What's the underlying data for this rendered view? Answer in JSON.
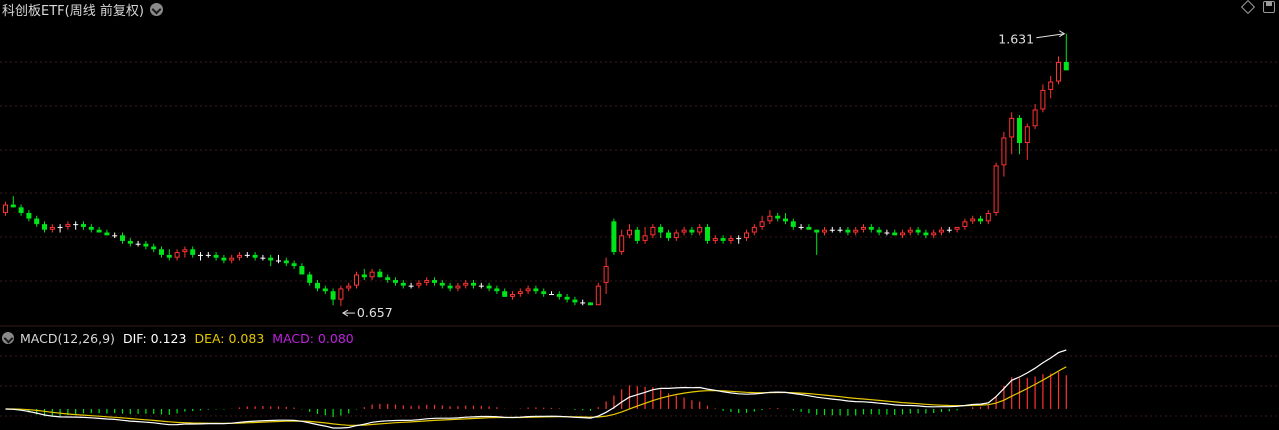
{
  "header": {
    "title": "科创板ETF(周线 前复权)"
  },
  "macd_panel": {
    "name": "MACD(12,26,9)",
    "dif_label": "DIF: 0.123",
    "dea_label": "DEA: 0.083",
    "macd_label": "MACD: 0.080"
  },
  "colors": {
    "up": "#ff3232",
    "down": "#00e51a",
    "flat": "#ffffff",
    "dif": "#ffffff",
    "dea": "#e6c800",
    "macd_label": "#c020e0",
    "grid": "#3a1a1a",
    "bg": "#000000"
  },
  "chart_data": {
    "type": "candlestick",
    "ylim": [
      0.6,
      1.68
    ],
    "annotations": {
      "high": "1.631",
      "low": "0.657"
    },
    "candles": [
      [
        0.99,
        1.03,
        0.98,
        1.02
      ],
      [
        1.02,
        1.05,
        1.01,
        1.01
      ],
      [
        1.01,
        1.02,
        0.98,
        0.99
      ],
      [
        0.99,
        1.0,
        0.96,
        0.97
      ],
      [
        0.97,
        0.98,
        0.94,
        0.95
      ],
      [
        0.95,
        0.96,
        0.92,
        0.93
      ],
      [
        0.93,
        0.95,
        0.92,
        0.94
      ],
      [
        0.94,
        0.95,
        0.92,
        0.94
      ],
      [
        0.94,
        0.96,
        0.93,
        0.95
      ],
      [
        0.95,
        0.96,
        0.93,
        0.95
      ],
      [
        0.95,
        0.96,
        0.93,
        0.94
      ],
      [
        0.94,
        0.95,
        0.92,
        0.93
      ],
      [
        0.93,
        0.94,
        0.92,
        0.92
      ],
      [
        0.92,
        0.93,
        0.91,
        0.91
      ],
      [
        0.91,
        0.92,
        0.9,
        0.91
      ],
      [
        0.91,
        0.92,
        0.88,
        0.89
      ],
      [
        0.89,
        0.9,
        0.87,
        0.88
      ],
      [
        0.88,
        0.89,
        0.87,
        0.88
      ],
      [
        0.88,
        0.89,
        0.86,
        0.87
      ],
      [
        0.87,
        0.88,
        0.85,
        0.86
      ],
      [
        0.86,
        0.87,
        0.83,
        0.84
      ],
      [
        0.84,
        0.86,
        0.82,
        0.83
      ],
      [
        0.83,
        0.86,
        0.82,
        0.85
      ],
      [
        0.85,
        0.87,
        0.83,
        0.86
      ],
      [
        0.86,
        0.87,
        0.83,
        0.84
      ],
      [
        0.84,
        0.85,
        0.82,
        0.84
      ],
      [
        0.84,
        0.85,
        0.83,
        0.84
      ],
      [
        0.84,
        0.85,
        0.82,
        0.83
      ],
      [
        0.83,
        0.84,
        0.81,
        0.82
      ],
      [
        0.82,
        0.84,
        0.81,
        0.83
      ],
      [
        0.83,
        0.85,
        0.82,
        0.84
      ],
      [
        0.84,
        0.85,
        0.83,
        0.84
      ],
      [
        0.84,
        0.85,
        0.82,
        0.83
      ],
      [
        0.83,
        0.84,
        0.82,
        0.83
      ],
      [
        0.83,
        0.84,
        0.8,
        0.82
      ],
      [
        0.82,
        0.84,
        0.81,
        0.82
      ],
      [
        0.82,
        0.83,
        0.8,
        0.81
      ],
      [
        0.81,
        0.82,
        0.79,
        0.8
      ],
      [
        0.8,
        0.81,
        0.77,
        0.77
      ],
      [
        0.77,
        0.78,
        0.73,
        0.74
      ],
      [
        0.74,
        0.75,
        0.71,
        0.72
      ],
      [
        0.72,
        0.73,
        0.7,
        0.71
      ],
      [
        0.71,
        0.72,
        0.66,
        0.68
      ],
      [
        0.68,
        0.73,
        0.657,
        0.72
      ],
      [
        0.72,
        0.74,
        0.71,
        0.73
      ],
      [
        0.73,
        0.78,
        0.72,
        0.77
      ],
      [
        0.77,
        0.79,
        0.75,
        0.76
      ],
      [
        0.76,
        0.79,
        0.75,
        0.78
      ],
      [
        0.78,
        0.79,
        0.76,
        0.76
      ],
      [
        0.76,
        0.77,
        0.74,
        0.75
      ],
      [
        0.75,
        0.76,
        0.73,
        0.74
      ],
      [
        0.74,
        0.75,
        0.72,
        0.73
      ],
      [
        0.73,
        0.74,
        0.72,
        0.73
      ],
      [
        0.73,
        0.75,
        0.72,
        0.74
      ],
      [
        0.74,
        0.76,
        0.73,
        0.75
      ],
      [
        0.75,
        0.76,
        0.73,
        0.74
      ],
      [
        0.74,
        0.75,
        0.72,
        0.73
      ],
      [
        0.73,
        0.74,
        0.71,
        0.72
      ],
      [
        0.72,
        0.74,
        0.71,
        0.73
      ],
      [
        0.73,
        0.75,
        0.72,
        0.74
      ],
      [
        0.74,
        0.75,
        0.72,
        0.73
      ],
      [
        0.73,
        0.74,
        0.72,
        0.73
      ],
      [
        0.73,
        0.74,
        0.71,
        0.72
      ],
      [
        0.72,
        0.73,
        0.7,
        0.71
      ],
      [
        0.71,
        0.72,
        0.69,
        0.69
      ],
      [
        0.69,
        0.71,
        0.68,
        0.7
      ],
      [
        0.7,
        0.72,
        0.69,
        0.71
      ],
      [
        0.71,
        0.73,
        0.7,
        0.72
      ],
      [
        0.72,
        0.73,
        0.7,
        0.71
      ],
      [
        0.71,
        0.72,
        0.69,
        0.7
      ],
      [
        0.7,
        0.71,
        0.7,
        0.7
      ],
      [
        0.7,
        0.71,
        0.68,
        0.69
      ],
      [
        0.69,
        0.7,
        0.67,
        0.68
      ],
      [
        0.68,
        0.69,
        0.66,
        0.67
      ],
      [
        0.67,
        0.68,
        0.66,
        0.67
      ],
      [
        0.67,
        0.67,
        0.66,
        0.66
      ],
      [
        0.66,
        0.74,
        0.66,
        0.73
      ],
      [
        0.74,
        0.83,
        0.7,
        0.8
      ],
      [
        0.96,
        0.97,
        0.84,
        0.85
      ],
      [
        0.85,
        0.93,
        0.84,
        0.91
      ],
      [
        0.91,
        0.95,
        0.9,
        0.93
      ],
      [
        0.93,
        0.94,
        0.88,
        0.89
      ],
      [
        0.89,
        0.94,
        0.88,
        0.91
      ],
      [
        0.91,
        0.95,
        0.9,
        0.94
      ],
      [
        0.94,
        0.95,
        0.9,
        0.92
      ],
      [
        0.92,
        0.93,
        0.89,
        0.9
      ],
      [
        0.9,
        0.93,
        0.89,
        0.92
      ],
      [
        0.92,
        0.94,
        0.91,
        0.93
      ],
      [
        0.93,
        0.94,
        0.91,
        0.92
      ],
      [
        0.92,
        0.95,
        0.91,
        0.94
      ],
      [
        0.94,
        0.95,
        0.88,
        0.89
      ],
      [
        0.89,
        0.91,
        0.88,
        0.9
      ],
      [
        0.9,
        0.91,
        0.88,
        0.89
      ],
      [
        0.89,
        0.91,
        0.88,
        0.9
      ],
      [
        0.9,
        0.91,
        0.88,
        0.9
      ],
      [
        0.9,
        0.93,
        0.89,
        0.92
      ],
      [
        0.92,
        0.95,
        0.91,
        0.94
      ],
      [
        0.94,
        0.98,
        0.93,
        0.96
      ],
      [
        0.96,
        1.0,
        0.95,
        0.98
      ],
      [
        0.98,
        0.99,
        0.96,
        0.97
      ],
      [
        0.97,
        0.99,
        0.95,
        0.96
      ],
      [
        0.96,
        0.97,
        0.93,
        0.94
      ],
      [
        0.94,
        0.95,
        0.93,
        0.94
      ],
      [
        0.94,
        0.95,
        0.93,
        0.93
      ],
      [
        0.93,
        0.93,
        0.84,
        0.92
      ],
      [
        0.92,
        0.94,
        0.91,
        0.93
      ],
      [
        0.93,
        0.94,
        0.92,
        0.93
      ],
      [
        0.93,
        0.94,
        0.92,
        0.93
      ],
      [
        0.93,
        0.94,
        0.91,
        0.92
      ],
      [
        0.92,
        0.94,
        0.91,
        0.93
      ],
      [
        0.93,
        0.95,
        0.92,
        0.94
      ],
      [
        0.94,
        0.95,
        0.92,
        0.93
      ],
      [
        0.93,
        0.94,
        0.91,
        0.92
      ],
      [
        0.92,
        0.93,
        0.91,
        0.92
      ],
      [
        0.92,
        0.93,
        0.91,
        0.91
      ],
      [
        0.91,
        0.93,
        0.9,
        0.92
      ],
      [
        0.92,
        0.94,
        0.91,
        0.93
      ],
      [
        0.93,
        0.94,
        0.91,
        0.92
      ],
      [
        0.92,
        0.93,
        0.9,
        0.91
      ],
      [
        0.91,
        0.93,
        0.9,
        0.92
      ],
      [
        0.92,
        0.94,
        0.91,
        0.93
      ],
      [
        0.93,
        0.94,
        0.92,
        0.93
      ],
      [
        0.93,
        0.94,
        0.92,
        0.94
      ],
      [
        0.94,
        0.97,
        0.93,
        0.96
      ],
      [
        0.96,
        0.98,
        0.95,
        0.97
      ],
      [
        0.97,
        0.98,
        0.95,
        0.96
      ],
      [
        0.96,
        1.0,
        0.95,
        0.99
      ],
      [
        0.99,
        1.17,
        0.98,
        1.16
      ],
      [
        1.16,
        1.28,
        1.12,
        1.26
      ],
      [
        1.26,
        1.35,
        1.2,
        1.33
      ],
      [
        1.33,
        1.34,
        1.2,
        1.24
      ],
      [
        1.24,
        1.31,
        1.18,
        1.3
      ],
      [
        1.3,
        1.38,
        1.29,
        1.36
      ],
      [
        1.36,
        1.45,
        1.35,
        1.43
      ],
      [
        1.43,
        1.48,
        1.4,
        1.46
      ],
      [
        1.46,
        1.55,
        1.45,
        1.53
      ],
      [
        1.53,
        1.631,
        1.5,
        1.5
      ]
    ]
  }
}
